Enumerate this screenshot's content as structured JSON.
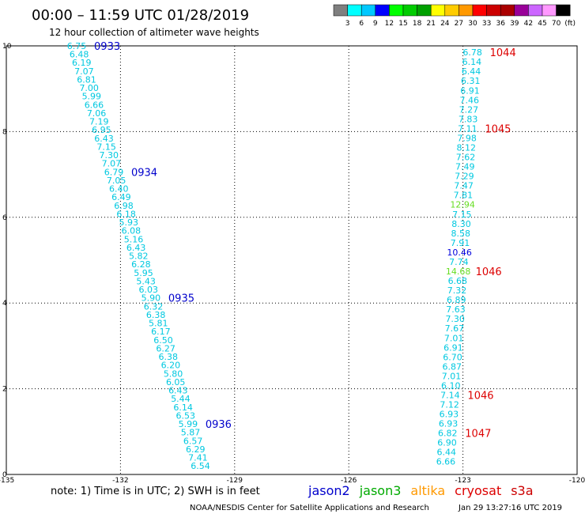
{
  "title": "00:00 – 11:59 UTC 01/28/2019",
  "subtitle": "12 hour collection of altimeter wave heights",
  "note": "note:  1) Time is in UTC; 2) SWH is in feet",
  "footer_left": "NOAA/NESDIS Center for Satellite Applications and Research",
  "footer_right": "Jan 29 13:27:16 UTC 2019",
  "colors": {
    "jason2": "#0000cc",
    "jason3": "#00aa00",
    "altika": "#ff9900",
    "cryosat": "#dd0000",
    "s3a": "#cc0000",
    "swh_cyan": "#00c8e0",
    "swh_green": "#66dd22",
    "swh_blue": "#0000dd"
  },
  "legend": {
    "colors": [
      "#7f7f7f",
      "#00ffff",
      "#00c8ff",
      "#0000ff",
      "#00ff00",
      "#00cc00",
      "#00a000",
      "#ffff00",
      "#ffcc00",
      "#ff9900",
      "#ff0000",
      "#cc0000",
      "#aa0000",
      "#990099",
      "#cc66ff",
      "#ff99ff",
      "#000000"
    ],
    "labels": [
      "3",
      "6",
      "9",
      "12",
      "15",
      "18",
      "21",
      "24",
      "27",
      "30",
      "33",
      "36",
      "39",
      "42",
      "45",
      "70",
      "(ft)"
    ]
  },
  "satellites": [
    {
      "name": "jason2",
      "color": "#0000cc"
    },
    {
      "name": "jason3",
      "color": "#00aa00"
    },
    {
      "name": "altika",
      "color": "#ff9900"
    },
    {
      "name": "cryosat",
      "color": "#dd0000"
    },
    {
      "name": "s3a",
      "color": "#cc0000"
    }
  ],
  "chart_data": {
    "type": "scatter",
    "xlim": [
      -135,
      -120
    ],
    "ylim": [
      0,
      10
    ],
    "x_ticks": [
      "-135",
      "-132",
      "-129",
      "-126",
      "-123",
      "-120"
    ],
    "y_ticks": [
      "0",
      "2",
      "4",
      "6",
      "8",
      "10"
    ],
    "grid": true,
    "tracks": [
      {
        "name": "jason2",
        "start": [
          -133.15,
          10.0
        ],
        "end": [
          -129.9,
          0.2
        ],
        "values": [
          "6.75",
          "6.48",
          "6.19",
          "7.07",
          "6.81",
          "7.00",
          "5.99",
          "6.66",
          "7.06",
          "7.19",
          "6.95",
          "6.43",
          "7.15",
          "7.30",
          "7.07",
          "6.79",
          "7.05",
          "6.40",
          "6.49",
          "6.98",
          "6.18",
          "5.93",
          "6.08",
          "5.16",
          "6.43",
          "5.82",
          "6.28",
          "5.95",
          "5.43",
          "6.03",
          "5.90",
          "6.32",
          "6.38",
          "5.81",
          "6.17",
          "6.50",
          "6.27",
          "6.38",
          "6.20",
          "5.80",
          "6.05",
          "6.43",
          "5.44",
          "6.14",
          "6.53",
          "5.99",
          "5.87",
          "6.57",
          "6.29",
          "7.41",
          "6.54"
        ],
        "times": [
          {
            "label": "0933",
            "at": 0
          },
          {
            "label": "0934",
            "at": 15
          },
          {
            "label": "0935",
            "at": 30
          },
          {
            "label": "0936",
            "at": 45
          }
        ]
      },
      {
        "name": "cryosat",
        "start": [
          -122.75,
          9.85
        ],
        "end": [
          -123.45,
          0.3
        ],
        "values": [
          "6.78",
          "6.14",
          "6.44",
          "6.31",
          "6.91",
          "7.46",
          "7.27",
          "7.83",
          "7.11",
          "7.98",
          "8.12",
          "7.62",
          "7.49",
          "7.29",
          "7.47",
          "7.81",
          "12.94",
          "7.15",
          "8.30",
          "8.58",
          "7.91",
          "10.46",
          "7.74",
          "14.68",
          "6.68",
          "7.32",
          "6.89",
          "7.63",
          "7.30",
          "7.67",
          "7.01",
          "6.91",
          "6.70",
          "6.87",
          "7.01",
          "6.10",
          "7.14",
          "7.12",
          "6.93",
          "6.93",
          "6.82",
          "6.90",
          "6.44",
          "6.66"
        ],
        "colors": {
          "16": "green",
          "21": "blue",
          "23": "green"
        },
        "times": [
          {
            "label": "1044",
            "at": 0
          },
          {
            "label": "1045",
            "at": 8
          },
          {
            "label": "1046",
            "at": 23
          },
          {
            "label": "1046",
            "at": 36
          },
          {
            "label": "1047",
            "at": 40
          }
        ]
      }
    ]
  }
}
